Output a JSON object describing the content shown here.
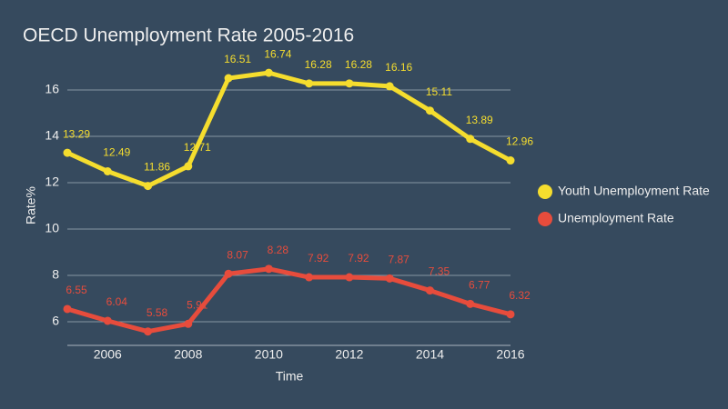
{
  "chart_data": {
    "type": "line",
    "title": "OECD Unemployment Rate 2005-2016",
    "x_label": "Time",
    "y_label": "Rate%",
    "x": [
      2005,
      2006,
      2007,
      2008,
      2009,
      2010,
      2011,
      2012,
      2013,
      2014,
      2015,
      2016
    ],
    "series": [
      {
        "name": "Youth Unemployment Rate",
        "color": "#f5dd2e",
        "values": [
          13.29,
          12.49,
          11.86,
          12.71,
          16.51,
          16.74,
          16.28,
          16.28,
          16.16,
          15.11,
          13.89,
          12.96
        ]
      },
      {
        "name": "Unemployment Rate",
        "color": "#e74c3c",
        "values": [
          6.55,
          6.04,
          5.58,
          5.91,
          8.07,
          8.28,
          7.92,
          7.92,
          7.87,
          7.35,
          6.77,
          6.32
        ]
      }
    ],
    "xlim": [
      2005,
      2016
    ],
    "xticks": [
      2006,
      2008,
      2010,
      2012,
      2014,
      2016
    ],
    "ylim": [
      5,
      17
    ],
    "yticks": [
      6,
      8,
      10,
      12,
      14,
      16
    ],
    "grid": true,
    "legend": "right"
  }
}
